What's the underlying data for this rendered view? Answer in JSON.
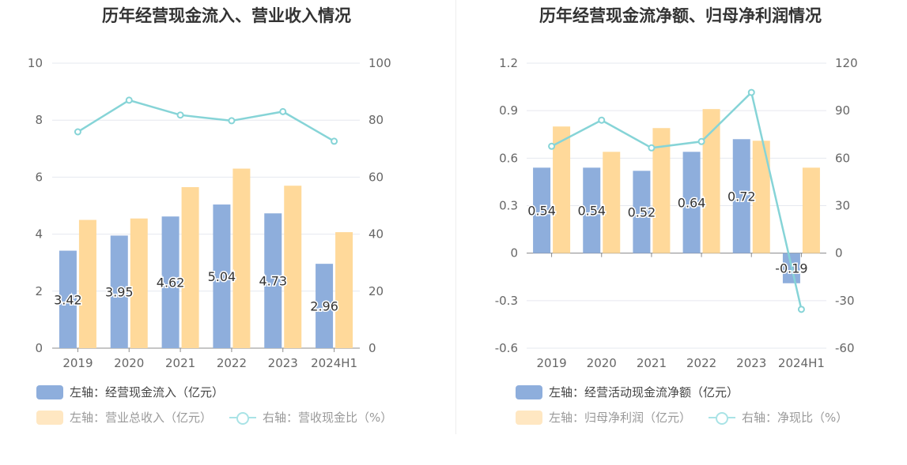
{
  "chart_data": [
    {
      "type": "bar+line",
      "title": "历年经营现金流入、营业收入情况",
      "categories": [
        "2019",
        "2020",
        "2021",
        "2022",
        "2023",
        "2024H1"
      ],
      "left_axis": {
        "ylim": [
          0,
          10
        ],
        "ticks": [
          "0",
          "2",
          "4",
          "6",
          "8",
          "10"
        ]
      },
      "right_axis": {
        "ylim": [
          0,
          100
        ],
        "ticks": [
          "0",
          "20",
          "40",
          "60",
          "80",
          "100"
        ]
      },
      "series": [
        {
          "name": "左轴：经营现金流入（亿元）",
          "kind": "bar",
          "axis": "left",
          "color": "#8eaedc",
          "values": [
            3.42,
            3.95,
            4.62,
            5.04,
            4.73,
            2.96
          ],
          "labels": [
            "3.42",
            "3.95",
            "4.62",
            "5.04",
            "4.73",
            "2.96"
          ]
        },
        {
          "name": "左轴：营业总收入（亿元）",
          "kind": "bar",
          "axis": "left",
          "color": "#ffd99a",
          "values": [
            4.5,
            4.55,
            5.65,
            6.3,
            5.7,
            4.07
          ]
        },
        {
          "name": "右轴：营收现金比（%）",
          "kind": "line",
          "axis": "right",
          "color": "#86d4d7",
          "values": [
            75.9,
            87.0,
            81.8,
            79.8,
            83.0,
            72.6
          ]
        }
      ]
    },
    {
      "type": "bar+line",
      "title": "历年经营现金流净额、归母净利润情况",
      "categories": [
        "2019",
        "2020",
        "2021",
        "2022",
        "2023",
        "2024H1"
      ],
      "left_axis": {
        "ylim": [
          -0.6,
          1.2
        ],
        "ticks": [
          "-0.6",
          "-0.3",
          "0",
          "0.3",
          "0.6",
          "0.9",
          "1.2"
        ]
      },
      "right_axis": {
        "ylim": [
          -60,
          120
        ],
        "ticks": [
          "-60",
          "-30",
          "0",
          "30",
          "60",
          "90",
          "120"
        ]
      },
      "series": [
        {
          "name": "左轴：经营活动现金流净额（亿元）",
          "kind": "bar",
          "axis": "left",
          "color": "#8eaedc",
          "values": [
            0.54,
            0.54,
            0.52,
            0.64,
            0.72,
            -0.19
          ],
          "labels": [
            "0.54",
            "0.54",
            "0.52",
            "0.64",
            "0.72",
            "-0.19"
          ]
        },
        {
          "name": "左轴：归母净利润（亿元）",
          "kind": "bar",
          "axis": "left",
          "color": "#ffd99a",
          "values": [
            0.8,
            0.64,
            0.79,
            0.91,
            0.71,
            0.54
          ]
        },
        {
          "name": "右轴：净现比（%）",
          "kind": "line",
          "axis": "right",
          "color": "#86d4d7",
          "values": [
            67.5,
            84.0,
            66.5,
            70.5,
            101.5,
            -35.5
          ]
        }
      ]
    }
  ]
}
